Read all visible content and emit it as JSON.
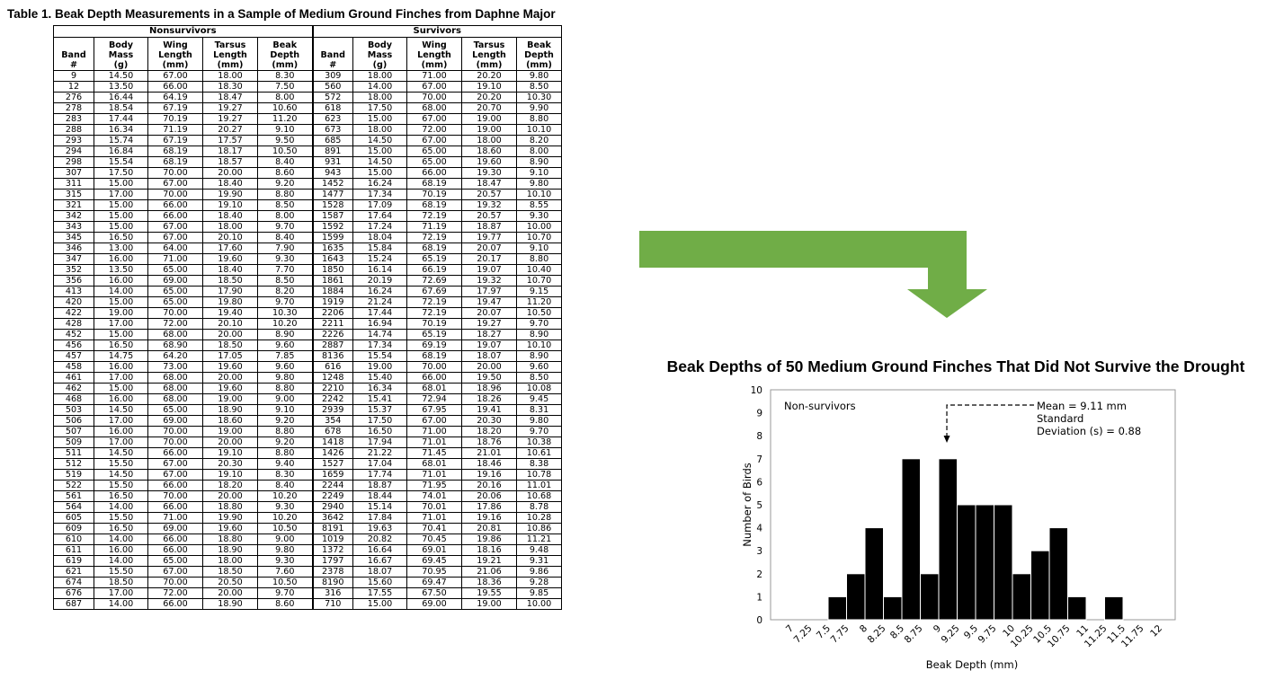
{
  "table": {
    "title": "Table 1. Beak Depth Measurements in a Sample of Medium Ground Finches from Daphne Major",
    "group_labels": [
      "Nonsurvivors",
      "Survivors"
    ],
    "columns": [
      [
        "Band",
        "#"
      ],
      [
        "Body",
        "Mass",
        "(g)"
      ],
      [
        "Wing",
        "Length",
        "(mm)"
      ],
      [
        "Tarsus",
        "Length",
        "(mm)"
      ],
      [
        "Beak",
        "Depth",
        "(mm)"
      ]
    ],
    "rows": [
      [
        "9",
        "14.50",
        "67.00",
        "18.00",
        "8.30",
        "309",
        "18.00",
        "71.00",
        "20.20",
        "9.80"
      ],
      [
        "12",
        "13.50",
        "66.00",
        "18.30",
        "7.50",
        "560",
        "14.00",
        "67.00",
        "19.10",
        "8.50"
      ],
      [
        "276",
        "16.44",
        "64.19",
        "18.47",
        "8.00",
        "572",
        "18.00",
        "70.00",
        "20.20",
        "10.30"
      ],
      [
        "278",
        "18.54",
        "67.19",
        "19.27",
        "10.60",
        "618",
        "17.50",
        "68.00",
        "20.70",
        "9.90"
      ],
      [
        "283",
        "17.44",
        "70.19",
        "19.27",
        "11.20",
        "623",
        "15.00",
        "67.00",
        "19.00",
        "8.80"
      ],
      [
        "288",
        "16.34",
        "71.19",
        "20.27",
        "9.10",
        "673",
        "18.00",
        "72.00",
        "19.00",
        "10.10"
      ],
      [
        "293",
        "15.74",
        "67.19",
        "17.57",
        "9.50",
        "685",
        "14.50",
        "67.00",
        "18.00",
        "8.20"
      ],
      [
        "294",
        "16.84",
        "68.19",
        "18.17",
        "10.50",
        "891",
        "15.00",
        "65.00",
        "18.60",
        "8.00"
      ],
      [
        "298",
        "15.54",
        "68.19",
        "18.57",
        "8.40",
        "931",
        "14.50",
        "65.00",
        "19.60",
        "8.90"
      ],
      [
        "307",
        "17.50",
        "70.00",
        "20.00",
        "8.60",
        "943",
        "15.00",
        "66.00",
        "19.30",
        "9.10"
      ],
      [
        "311",
        "15.00",
        "67.00",
        "18.40",
        "9.20",
        "1452",
        "16.24",
        "68.19",
        "18.47",
        "9.80"
      ],
      [
        "315",
        "17.00",
        "70.00",
        "19.90",
        "8.80",
        "1477",
        "17.34",
        "70.19",
        "20.57",
        "10.10"
      ],
      [
        "321",
        "15.00",
        "66.00",
        "19.10",
        "8.50",
        "1528",
        "17.09",
        "68.19",
        "19.32",
        "8.55"
      ],
      [
        "342",
        "15.00",
        "66.00",
        "18.40",
        "8.00",
        "1587",
        "17.64",
        "72.19",
        "20.57",
        "9.30"
      ],
      [
        "343",
        "15.00",
        "67.00",
        "18.00",
        "9.70",
        "1592",
        "17.24",
        "71.19",
        "18.87",
        "10.00"
      ],
      [
        "345",
        "16.50",
        "67.00",
        "20.10",
        "8.40",
        "1599",
        "18.04",
        "72.19",
        "19.77",
        "10.70"
      ],
      [
        "346",
        "13.00",
        "64.00",
        "17.60",
        "7.90",
        "1635",
        "15.84",
        "68.19",
        "20.07",
        "9.10"
      ],
      [
        "347",
        "16.00",
        "71.00",
        "19.60",
        "9.30",
        "1643",
        "15.24",
        "65.19",
        "20.17",
        "8.80"
      ],
      [
        "352",
        "13.50",
        "65.00",
        "18.40",
        "7.70",
        "1850",
        "16.14",
        "66.19",
        "19.07",
        "10.40"
      ],
      [
        "356",
        "16.00",
        "69.00",
        "18.50",
        "8.50",
        "1861",
        "20.19",
        "72.69",
        "19.32",
        "10.70"
      ],
      [
        "413",
        "14.00",
        "65.00",
        "17.90",
        "8.20",
        "1884",
        "16.24",
        "67.69",
        "17.97",
        "9.15"
      ],
      [
        "420",
        "15.00",
        "65.00",
        "19.80",
        "9.70",
        "1919",
        "21.24",
        "72.19",
        "19.47",
        "11.20"
      ],
      [
        "422",
        "19.00",
        "70.00",
        "19.40",
        "10.30",
        "2206",
        "17.44",
        "72.19",
        "20.07",
        "10.50"
      ],
      [
        "428",
        "17.00",
        "72.00",
        "20.10",
        "10.20",
        "2211",
        "16.94",
        "70.19",
        "19.27",
        "9.70"
      ],
      [
        "452",
        "15.00",
        "68.00",
        "20.00",
        "8.90",
        "2226",
        "14.74",
        "65.19",
        "18.27",
        "8.90"
      ],
      [
        "456",
        "16.50",
        "68.90",
        "18.50",
        "9.60",
        "2887",
        "17.34",
        "69.19",
        "19.07",
        "10.10"
      ],
      [
        "457",
        "14.75",
        "64.20",
        "17.05",
        "7.85",
        "8136",
        "15.54",
        "68.19",
        "18.07",
        "8.90"
      ],
      [
        "458",
        "16.00",
        "73.00",
        "19.60",
        "9.60",
        "616",
        "19.00",
        "70.00",
        "20.00",
        "9.60"
      ],
      [
        "461",
        "17.00",
        "68.00",
        "20.00",
        "9.80",
        "1248",
        "15.40",
        "66.00",
        "19.50",
        "8.50"
      ],
      [
        "462",
        "15.00",
        "68.00",
        "19.60",
        "8.80",
        "2210",
        "16.34",
        "68.01",
        "18.96",
        "10.08"
      ],
      [
        "468",
        "16.00",
        "68.00",
        "19.00",
        "9.00",
        "2242",
        "15.41",
        "72.94",
        "18.26",
        "9.45"
      ],
      [
        "503",
        "14.50",
        "65.00",
        "18.90",
        "9.10",
        "2939",
        "15.37",
        "67.95",
        "19.41",
        "8.31"
      ],
      [
        "506",
        "17.00",
        "69.00",
        "18.60",
        "9.20",
        "354",
        "17.50",
        "67.00",
        "20.30",
        "9.80"
      ],
      [
        "507",
        "16.00",
        "70.00",
        "19.00",
        "8.80",
        "678",
        "16.50",
        "71.00",
        "18.20",
        "9.70"
      ],
      [
        "509",
        "17.00",
        "70.00",
        "20.00",
        "9.20",
        "1418",
        "17.94",
        "71.01",
        "18.76",
        "10.38"
      ],
      [
        "511",
        "14.50",
        "66.00",
        "19.10",
        "8.80",
        "1426",
        "21.22",
        "71.45",
        "21.01",
        "10.61"
      ],
      [
        "512",
        "15.50",
        "67.00",
        "20.30",
        "9.40",
        "1527",
        "17.04",
        "68.01",
        "18.46",
        "8.38"
      ],
      [
        "519",
        "14.50",
        "67.00",
        "19.10",
        "8.30",
        "1659",
        "17.74",
        "71.01",
        "19.16",
        "10.78"
      ],
      [
        "522",
        "15.50",
        "66.00",
        "18.20",
        "8.40",
        "2244",
        "18.87",
        "71.95",
        "20.16",
        "11.01"
      ],
      [
        "561",
        "16.50",
        "70.00",
        "20.00",
        "10.20",
        "2249",
        "18.44",
        "74.01",
        "20.06",
        "10.68"
      ],
      [
        "564",
        "14.00",
        "66.00",
        "18.80",
        "9.30",
        "2940",
        "15.14",
        "70.01",
        "17.86",
        "8.78"
      ],
      [
        "605",
        "15.50",
        "71.00",
        "19.90",
        "10.20",
        "3642",
        "17.84",
        "71.01",
        "19.16",
        "10.28"
      ],
      [
        "609",
        "16.50",
        "69.00",
        "19.60",
        "10.50",
        "8191",
        "19.63",
        "70.41",
        "20.81",
        "10.86"
      ],
      [
        "610",
        "14.00",
        "66.00",
        "18.80",
        "9.00",
        "1019",
        "20.82",
        "70.45",
        "19.86",
        "11.21"
      ],
      [
        "611",
        "16.00",
        "66.00",
        "18.90",
        "9.80",
        "1372",
        "16.64",
        "69.01",
        "18.16",
        "9.48"
      ],
      [
        "619",
        "14.00",
        "65.00",
        "18.00",
        "9.30",
        "1797",
        "16.67",
        "69.45",
        "19.21",
        "9.31"
      ],
      [
        "621",
        "15.50",
        "67.00",
        "18.50",
        "7.60",
        "2378",
        "18.07",
        "70.95",
        "21.06",
        "9.86"
      ],
      [
        "674",
        "18.50",
        "70.00",
        "20.50",
        "10.50",
        "8190",
        "15.60",
        "69.47",
        "18.36",
        "9.28"
      ],
      [
        "676",
        "17.00",
        "72.00",
        "20.00",
        "9.70",
        "316",
        "17.55",
        "67.50",
        "19.55",
        "9.85"
      ],
      [
        "687",
        "14.00",
        "66.00",
        "18.90",
        "8.60",
        "710",
        "15.00",
        "69.00",
        "19.00",
        "10.00"
      ]
    ]
  },
  "colors": {
    "arrow": "#70ad47",
    "bar": "#000000",
    "axis": "#888888"
  },
  "chart_data": {
    "type": "bar",
    "title": "Beak Depths of 50 Medium Ground Finches That Did Not Survive the Drought",
    "xlabel": "Beak Depth (mm)",
    "ylabel": "Number of Birds",
    "ylim": [
      0,
      10
    ],
    "yticks": [
      "0",
      "1",
      "2",
      "3",
      "4",
      "5",
      "6",
      "7",
      "8",
      "9",
      "10"
    ],
    "categories": [
      "7",
      "7.25",
      "7.5",
      "7.75",
      "8",
      "8.25",
      "8.5",
      "8.75",
      "9",
      "9.25",
      "9.5",
      "9.75",
      "10",
      "10.25",
      "10.5",
      "10.75",
      "11",
      "11.25",
      "11.5",
      "11.75",
      "12"
    ],
    "values": [
      0,
      0,
      1,
      2,
      4,
      1,
      7,
      2,
      7,
      5,
      5,
      5,
      2,
      3,
      4,
      1,
      0,
      1,
      0,
      0,
      0
    ],
    "grid": false,
    "legend_text": "Non-survivors",
    "annotation": [
      "Mean = 9.11 mm",
      "Standard",
      "Deviation (s) = 0.88"
    ],
    "mean_value": 9.11
  }
}
